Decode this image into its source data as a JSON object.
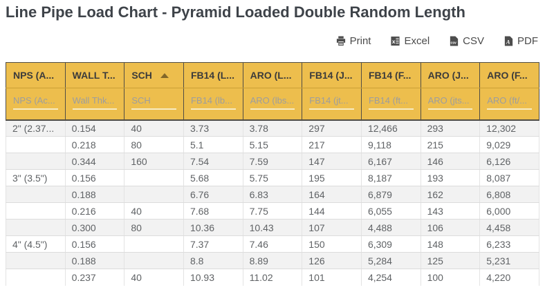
{
  "page": {
    "title": "Line Pipe Load Chart - Pyramid Loaded Double Random Length"
  },
  "toolbar": {
    "print_label": "Print",
    "excel_label": "Excel",
    "csv_label": "CSV",
    "pdf_label": "PDF"
  },
  "table": {
    "columns": [
      {
        "header": "NPS (A...",
        "filter_placeholder": "NPS (Ac...",
        "sort": null
      },
      {
        "header": "WALL T...",
        "filter_placeholder": "Wall Thk...",
        "sort": null
      },
      {
        "header": "SCH",
        "filter_placeholder": "SCH",
        "sort": "asc"
      },
      {
        "header": "FB14 (L...",
        "filter_placeholder": "FB14 (lb...",
        "sort": null
      },
      {
        "header": "ARO (L...",
        "filter_placeholder": "ARO (lbs...",
        "sort": null
      },
      {
        "header": "FB14 (J...",
        "filter_placeholder": "FB14 (jt...",
        "sort": null
      },
      {
        "header": "FB14 (F...",
        "filter_placeholder": "FB14 (ft...",
        "sort": null
      },
      {
        "header": "ARO (J...",
        "filter_placeholder": "ARO (jts...",
        "sort": null
      },
      {
        "header": "ARO (F...",
        "filter_placeholder": "ARO (ft/...",
        "sort": null
      }
    ],
    "rows": [
      [
        "2\" (2.37...",
        "0.154",
        "40",
        "3.73",
        "3.78",
        "297",
        "12,466",
        "293",
        "12,302"
      ],
      [
        "",
        "0.218",
        "80",
        "5.1",
        "5.15",
        "217",
        "9,118",
        "215",
        "9,029"
      ],
      [
        "",
        "0.344",
        "160",
        "7.54",
        "7.59",
        "147",
        "6,167",
        "146",
        "6,126"
      ],
      [
        "3\" (3.5\")",
        "0.156",
        "",
        "5.68",
        "5.75",
        "195",
        "8,187",
        "193",
        "8,087"
      ],
      [
        "",
        "0.188",
        "",
        "6.76",
        "6.83",
        "164",
        "6,879",
        "162",
        "6,808"
      ],
      [
        "",
        "0.216",
        "40",
        "7.68",
        "7.75",
        "144",
        "6,055",
        "143",
        "6,000"
      ],
      [
        "",
        "0.300",
        "80",
        "10.36",
        "10.43",
        "107",
        "4,488",
        "106",
        "4,458"
      ],
      [
        "4\" (4.5\")",
        "0.156",
        "",
        "7.37",
        "7.46",
        "150",
        "6,309",
        "148",
        "6,233"
      ],
      [
        "",
        "0.188",
        "",
        "8.8",
        "8.89",
        "126",
        "5,284",
        "125",
        "5,231"
      ],
      [
        "",
        "0.237",
        "40",
        "10.93",
        "11.02",
        "101",
        "4,254",
        "100",
        "4,220"
      ]
    ]
  },
  "colors": {
    "header_bg": "#edbe4d",
    "header_text": "#3b3b3b",
    "stripe": "#f2f2f2",
    "title": "#3e4349"
  }
}
